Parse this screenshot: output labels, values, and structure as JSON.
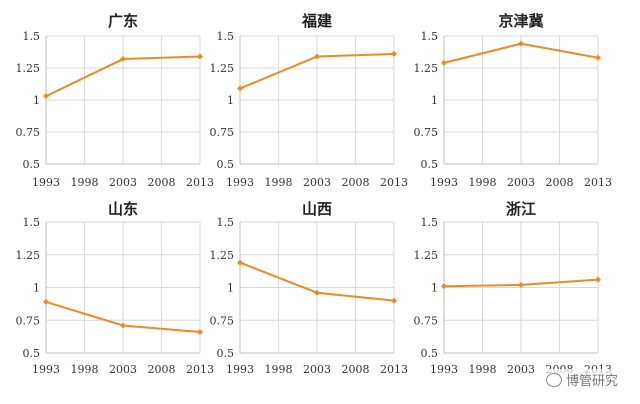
{
  "colors": {
    "line": "#ED8B22"
  },
  "watermark": "博管研究",
  "chart_data": [
    {
      "type": "line",
      "title": "广东",
      "x": [
        1993,
        2003,
        2013
      ],
      "values": [
        1.03,
        1.32,
        1.34
      ],
      "xticks": [
        "1993",
        "1998",
        "2003",
        "2008",
        "2013"
      ],
      "xlim": [
        1993,
        2013
      ],
      "yticks": [
        "0.5",
        "0.75",
        "1",
        "1.25",
        "1.5"
      ],
      "ylim": [
        0.5,
        1.5
      ]
    },
    {
      "type": "line",
      "title": "福建",
      "x": [
        1993,
        2003,
        2013
      ],
      "values": [
        1.09,
        1.34,
        1.36
      ],
      "xticks": [
        "1993",
        "1998",
        "2003",
        "2008",
        "2013"
      ],
      "xlim": [
        1993,
        2013
      ],
      "yticks": [
        "0.5",
        "0.75",
        "1",
        "1.25",
        "1.5"
      ],
      "ylim": [
        0.5,
        1.5
      ]
    },
    {
      "type": "line",
      "title": "京津冀",
      "x": [
        1993,
        2003,
        2013
      ],
      "values": [
        1.29,
        1.44,
        1.33
      ],
      "xticks": [
        "1993",
        "1998",
        "2003",
        "2008",
        "2013"
      ],
      "xlim": [
        1993,
        2013
      ],
      "yticks": [
        "0.5",
        "0.75",
        "1",
        "1.25",
        "1.5"
      ],
      "ylim": [
        0.5,
        1.5
      ]
    },
    {
      "type": "line",
      "title": "山东",
      "x": [
        1993,
        2003,
        2013
      ],
      "values": [
        0.89,
        0.71,
        0.66
      ],
      "xticks": [
        "1993",
        "1998",
        "2003",
        "2008",
        "2013"
      ],
      "xlim": [
        1993,
        2013
      ],
      "yticks": [
        "0.5",
        "0.75",
        "1",
        "1.25",
        "1.5"
      ],
      "ylim": [
        0.5,
        1.5
      ]
    },
    {
      "type": "line",
      "title": "山西",
      "x": [
        1993,
        2003,
        2013
      ],
      "values": [
        1.19,
        0.96,
        0.9
      ],
      "xticks": [
        "1993",
        "1998",
        "2003",
        "2008",
        "2013"
      ],
      "xlim": [
        1993,
        2013
      ],
      "yticks": [
        "0.5",
        "0.75",
        "1",
        "1.25",
        "1.5"
      ],
      "ylim": [
        0.5,
        1.5
      ]
    },
    {
      "type": "line",
      "title": "浙江",
      "x": [
        1993,
        2003,
        2013
      ],
      "values": [
        1.01,
        1.02,
        1.06
      ],
      "xticks": [
        "1993",
        "1998",
        "2003",
        "2008",
        "2013"
      ],
      "xlim": [
        1993,
        2013
      ],
      "yticks": [
        "0.5",
        "0.75",
        "1",
        "1.25",
        "1.5"
      ],
      "ylim": [
        0.5,
        1.5
      ]
    }
  ]
}
